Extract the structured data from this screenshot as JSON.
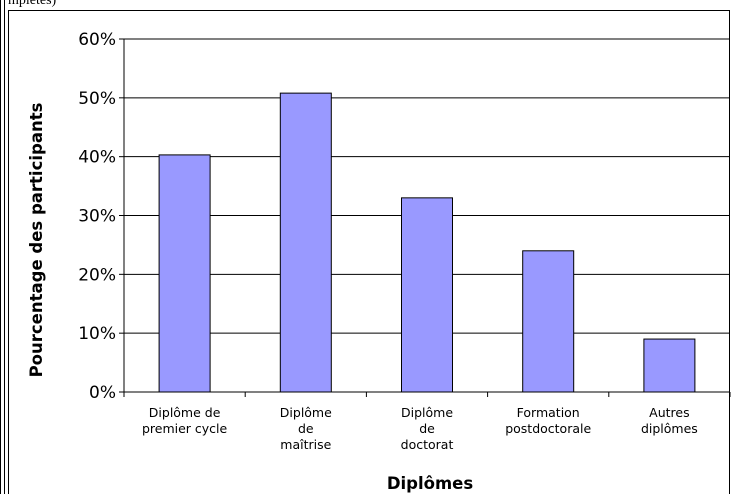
{
  "page_fragment": "mpletes)",
  "chart_data": {
    "type": "bar",
    "categories": [
      [
        "Diplôme de",
        "premier cycle"
      ],
      [
        "Diplôme",
        "de",
        "maîtrise"
      ],
      [
        "Diplôme",
        "de",
        "doctorat"
      ],
      [
        "Formation",
        "postdoctorale"
      ],
      [
        "Autres",
        "diplômes"
      ]
    ],
    "values": [
      40.3,
      50.8,
      33.0,
      24.0,
      9.0
    ],
    "ylim": [
      0,
      60
    ],
    "yticks": [
      0,
      10,
      20,
      30,
      40,
      50,
      60
    ],
    "ytick_format": "{v}%",
    "xlabel": "Diplômes",
    "ylabel": "Pourcentage des participants",
    "grid": true,
    "colors": {
      "bar_fill": "#9999ff",
      "bar_stroke": "#000000",
      "grid": "#000000"
    }
  }
}
